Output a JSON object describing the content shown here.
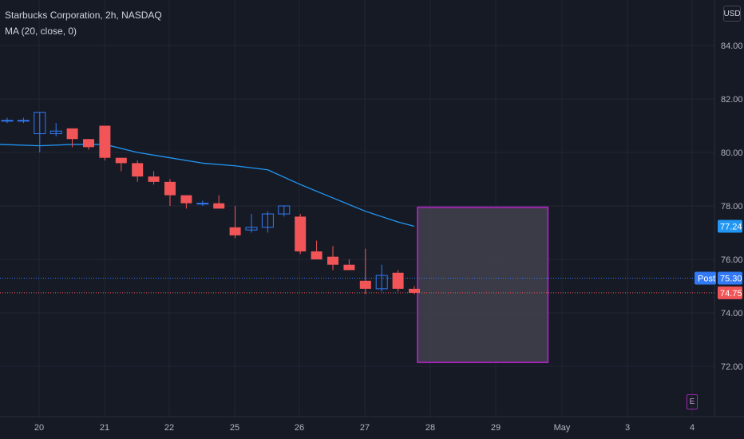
{
  "legend": {
    "symbol_line": "Starbucks Corporation, 2h, NASDAQ",
    "ma_line": "MA (20, close, 0)"
  },
  "currency": "USD",
  "colors": {
    "background": "#161a25",
    "grid": "#232632",
    "up": "#3179f5",
    "down": "#f15557",
    "ma": "#2196f3",
    "box_border": "#9c27b0",
    "box_fill": "#42424d",
    "post_line": "#3179f5",
    "last_line": "#f15557"
  },
  "price_labels": {
    "ma_value": "77.24",
    "post_tag": "Post",
    "post_value": "75.30",
    "last_value": "74.75"
  },
  "earnings_marker": "E",
  "chart_data": {
    "type": "candlestick",
    "title": "Starbucks Corporation, 2h, NASDAQ",
    "x_ticks": [
      "20",
      "21",
      "22",
      "25",
      "26",
      "27",
      "28",
      "29",
      "May",
      "3",
      "4"
    ],
    "y_ticks": [
      "72.00",
      "74.00",
      "76.00",
      "78.00",
      "80.00",
      "82.00",
      "84.00"
    ],
    "ylim": [
      70.3,
      86.1
    ],
    "candles": [
      {
        "o": 81.2,
        "h": 81.3,
        "l": 81.1,
        "c": 81.2
      },
      {
        "o": 81.2,
        "h": 81.3,
        "l": 81.1,
        "c": 81.2
      },
      {
        "o": 80.7,
        "h": 81.5,
        "l": 80.0,
        "c": 81.5
      },
      {
        "o": 80.7,
        "h": 81.1,
        "l": 80.6,
        "c": 80.8
      },
      {
        "o": 80.9,
        "h": 80.9,
        "l": 80.2,
        "c": 80.5
      },
      {
        "o": 80.5,
        "h": 80.5,
        "l": 80.1,
        "c": 80.2
      },
      {
        "o": 81.0,
        "h": 81.0,
        "l": 79.7,
        "c": 79.8
      },
      {
        "o": 79.8,
        "h": 79.8,
        "l": 79.3,
        "c": 79.6
      },
      {
        "o": 79.6,
        "h": 79.7,
        "l": 78.9,
        "c": 79.1
      },
      {
        "o": 79.1,
        "h": 79.3,
        "l": 78.8,
        "c": 78.9
      },
      {
        "o": 78.9,
        "h": 79.0,
        "l": 78.0,
        "c": 78.4
      },
      {
        "o": 78.4,
        "h": 78.4,
        "l": 77.9,
        "c": 78.1
      },
      {
        "o": 78.1,
        "h": 78.2,
        "l": 78.0,
        "c": 78.1
      },
      {
        "o": 78.1,
        "h": 78.4,
        "l": 77.9,
        "c": 77.9
      },
      {
        "o": 77.2,
        "h": 78.0,
        "l": 76.8,
        "c": 76.9
      },
      {
        "o": 77.1,
        "h": 77.7,
        "l": 77.0,
        "c": 77.2
      },
      {
        "o": 77.2,
        "h": 77.8,
        "l": 77.0,
        "c": 77.7
      },
      {
        "o": 77.7,
        "h": 78.0,
        "l": 77.6,
        "c": 78.0
      },
      {
        "o": 77.6,
        "h": 77.7,
        "l": 76.2,
        "c": 76.3
      },
      {
        "o": 76.3,
        "h": 76.7,
        "l": 76.0,
        "c": 76.0
      },
      {
        "o": 76.1,
        "h": 76.5,
        "l": 75.6,
        "c": 75.8
      },
      {
        "o": 75.8,
        "h": 76.0,
        "l": 75.6,
        "c": 75.6
      },
      {
        "o": 75.2,
        "h": 76.4,
        "l": 74.7,
        "c": 74.9
      },
      {
        "o": 74.9,
        "h": 75.8,
        "l": 74.8,
        "c": 75.4
      },
      {
        "o": 75.5,
        "h": 75.6,
        "l": 74.8,
        "c": 74.9
      },
      {
        "o": 74.9,
        "h": 75.0,
        "l": 74.7,
        "c": 74.75
      }
    ],
    "ma_series": {
      "name": "MA (20, close, 0)",
      "x_index": [
        0,
        2,
        4,
        6,
        8,
        10,
        12,
        14,
        16,
        18,
        20,
        22,
        24,
        25
      ],
      "values": [
        80.3,
        80.25,
        80.3,
        80.3,
        80.0,
        79.8,
        79.6,
        79.5,
        79.35,
        78.8,
        78.3,
        77.8,
        77.4,
        77.24
      ]
    },
    "projection_box": {
      "x_start": 25.2,
      "x_end": 33.2,
      "y_top": 77.95,
      "y_bottom": 72.15
    },
    "post_price": 75.3,
    "last_price": 74.75
  }
}
